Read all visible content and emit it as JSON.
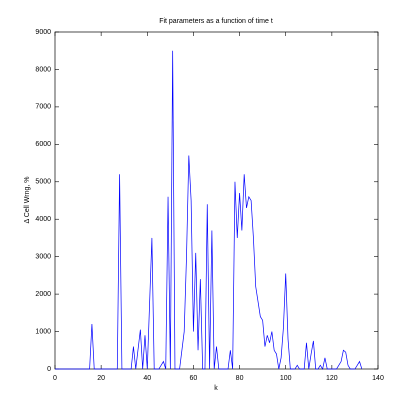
{
  "chart_data": {
    "type": "line",
    "title": "Fit parameters as a function of time t",
    "xlabel": "k",
    "ylabel": "Δ Cell Wrng, %",
    "x": [
      0,
      15,
      16,
      17,
      27,
      28,
      29,
      33,
      34,
      35,
      37,
      38,
      39,
      40,
      42,
      43,
      45,
      47,
      48,
      49,
      50,
      51,
      52,
      54,
      56,
      57,
      58,
      59,
      60,
      61,
      62,
      63,
      64,
      65,
      66,
      67,
      68,
      69,
      70,
      71,
      75,
      76,
      77,
      78,
      79,
      80,
      81,
      82,
      83,
      84,
      85,
      86,
      87,
      88,
      89,
      90,
      91,
      92,
      93,
      94,
      95,
      96,
      97,
      98,
      99,
      100,
      101,
      102,
      104,
      105,
      106,
      108,
      109,
      110,
      111,
      112,
      113,
      114,
      115,
      116,
      117,
      118,
      122,
      123,
      124,
      125,
      126,
      127,
      128,
      130,
      131,
      132,
      133
    ],
    "series": [
      {
        "name": "series",
        "color": "#0000ff",
        "values": [
          0,
          0,
          1200,
          0,
          0,
          5200,
          0,
          0,
          600,
          0,
          1050,
          0,
          900,
          0,
          3500,
          0,
          0,
          200,
          0,
          4600,
          0,
          8500,
          0,
          0,
          1000,
          3000,
          5700,
          4500,
          1000,
          3100,
          500,
          2400,
          0,
          0,
          4400,
          0,
          3700,
          0,
          600,
          0,
          0,
          500,
          0,
          5000,
          3500,
          4700,
          3700,
          5200,
          4300,
          4600,
          4500,
          3500,
          2200,
          1800,
          1400,
          1300,
          600,
          900,
          700,
          1000,
          500,
          400,
          0,
          300,
          1100,
          2550,
          800,
          0,
          0,
          100,
          0,
          0,
          700,
          0,
          400,
          750,
          0,
          0,
          100,
          0,
          300,
          0,
          0,
          100,
          200,
          500,
          450,
          100,
          0,
          0,
          100,
          200,
          0
        ]
      }
    ],
    "xlim": [
      0,
      140
    ],
    "xticks": [
      0,
      20,
      40,
      60,
      80,
      100,
      120,
      140
    ],
    "ylim": [
      0,
      9000
    ],
    "yticks": [
      0,
      1000,
      2000,
      3000,
      4000,
      5000,
      6000,
      7000,
      8000,
      9000
    ]
  }
}
